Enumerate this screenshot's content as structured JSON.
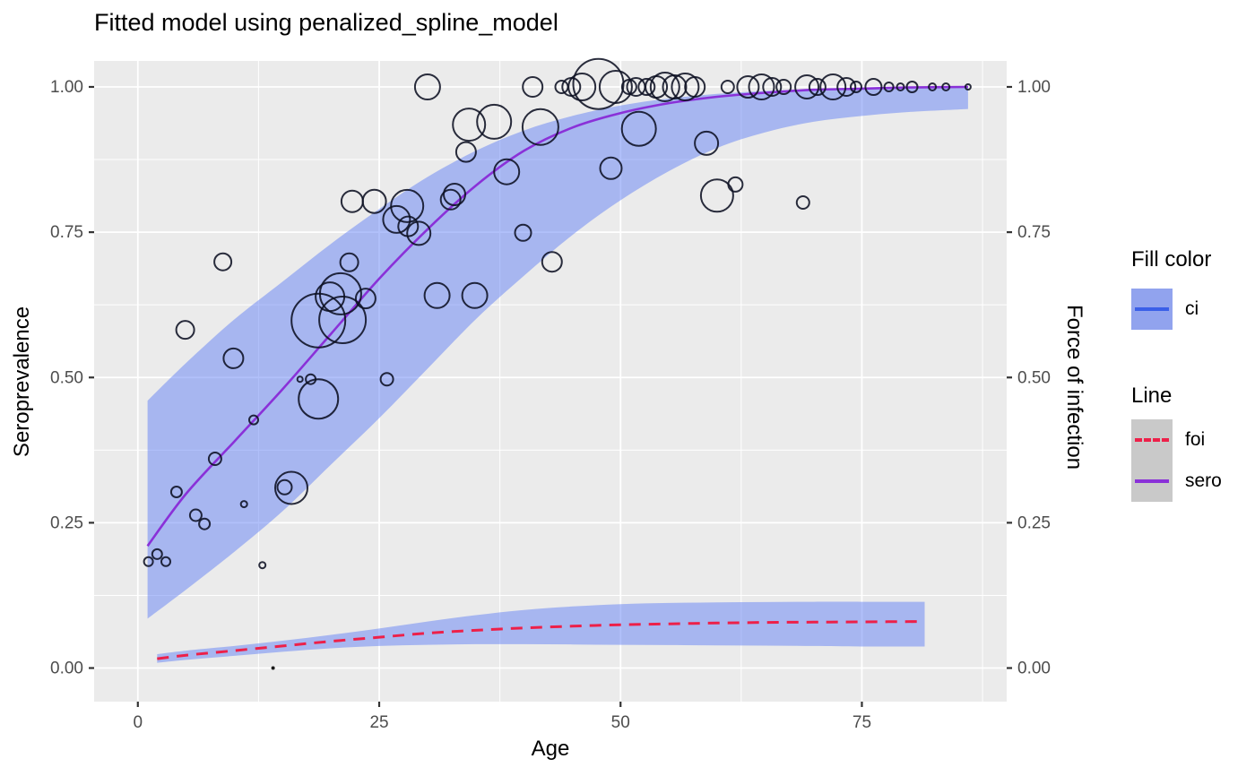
{
  "title": "Fitted model using penalized_spline_model",
  "axes": {
    "x": {
      "label": "Age",
      "tick_labels": [
        "0",
        "25",
        "50",
        "75"
      ],
      "tick_values": [
        0,
        25,
        50,
        75
      ],
      "minor_values": [
        12.5,
        37.5,
        62.5,
        87.5
      ]
    },
    "y_left": {
      "label": "Seroprevalence",
      "tick_labels": [
        "0.00",
        "0.25",
        "0.50",
        "0.75",
        "1.00"
      ],
      "tick_values": [
        0,
        0.25,
        0.5,
        0.75,
        1.0
      ],
      "minor_values": [
        0.125,
        0.375,
        0.625,
        0.875
      ]
    },
    "y_right": {
      "label": "Force of infection",
      "tick_labels": [
        "0.00",
        "0.25",
        "0.50",
        "0.75",
        "1.00"
      ],
      "tick_values": [
        0,
        0.25,
        0.5,
        0.75,
        1.0
      ]
    }
  },
  "legend": {
    "fill_group": {
      "title": "Fill color",
      "items": [
        {
          "label": "ci",
          "key_fill": "#91A3EE",
          "key_line": "#3A5FE8"
        }
      ]
    },
    "line_group": {
      "title": "Line",
      "key_bg": "#C9C9C9",
      "items": [
        {
          "label": "foi",
          "color": "#ED2049",
          "dashed": true
        },
        {
          "label": "sero",
          "color": "#8A31D8",
          "dashed": false
        }
      ]
    }
  },
  "colors": {
    "panel_bg": "#EBEBEB",
    "grid": "#FFFFFF",
    "ribbon": "#6482F5",
    "ribbon_alpha": 0.5,
    "sero_line": "#8A31D8",
    "foi_line": "#ED2049",
    "bubble_stroke": "rgba(12,16,34,0.88)",
    "tick_mark": "#333333",
    "tick_label": "#4D4D4D"
  },
  "chart_data": {
    "type": "mixed: bubble scatter + fitted lines with CI ribbons",
    "x_domain": [
      -4.53,
      90.0
    ],
    "y_domain": [
      -0.0578,
      1.0447
    ],
    "grid": "major+minor",
    "legend_position": "right",
    "series": [
      {
        "name": "sero",
        "kind": "line+ribbon",
        "line": [
          [
            1,
            0.21
          ],
          [
            5,
            0.3
          ],
          [
            10,
            0.39
          ],
          [
            15,
            0.48
          ],
          [
            20,
            0.575
          ],
          [
            25,
            0.67
          ],
          [
            30,
            0.755
          ],
          [
            35,
            0.83
          ],
          [
            40,
            0.89
          ],
          [
            45,
            0.93
          ],
          [
            50,
            0.955
          ],
          [
            55,
            0.972
          ],
          [
            60,
            0.983
          ],
          [
            65,
            0.99
          ],
          [
            70,
            0.995
          ],
          [
            75,
            0.997
          ],
          [
            80,
            0.999
          ],
          [
            86,
            1.0
          ]
        ],
        "upper": [
          [
            1,
            0.46
          ],
          [
            5,
            0.525
          ],
          [
            10,
            0.6
          ],
          [
            15,
            0.665
          ],
          [
            20,
            0.73
          ],
          [
            25,
            0.79
          ],
          [
            30,
            0.845
          ],
          [
            35,
            0.89
          ],
          [
            40,
            0.925
          ],
          [
            45,
            0.95
          ],
          [
            50,
            0.968
          ],
          [
            55,
            0.98
          ],
          [
            60,
            0.988
          ],
          [
            65,
            0.993
          ],
          [
            70,
            0.996
          ],
          [
            75,
            0.998
          ],
          [
            80,
            0.999
          ],
          [
            86,
            1.0
          ]
        ],
        "lower": [
          [
            1,
            0.085
          ],
          [
            5,
            0.135
          ],
          [
            10,
            0.2
          ],
          [
            15,
            0.27
          ],
          [
            20,
            0.35
          ],
          [
            25,
            0.43
          ],
          [
            30,
            0.515
          ],
          [
            35,
            0.6
          ],
          [
            40,
            0.675
          ],
          [
            45,
            0.745
          ],
          [
            50,
            0.805
          ],
          [
            55,
            0.855
          ],
          [
            60,
            0.895
          ],
          [
            65,
            0.922
          ],
          [
            70,
            0.94
          ],
          [
            75,
            0.95
          ],
          [
            80,
            0.957
          ],
          [
            86,
            0.962
          ]
        ]
      },
      {
        "name": "foi",
        "kind": "dashed-line+ribbon",
        "line": [
          [
            2,
            0.016
          ],
          [
            5,
            0.022
          ],
          [
            10,
            0.03
          ],
          [
            15,
            0.038
          ],
          [
            20,
            0.046
          ],
          [
            25,
            0.053
          ],
          [
            30,
            0.06
          ],
          [
            35,
            0.065
          ],
          [
            40,
            0.069
          ],
          [
            45,
            0.072
          ],
          [
            50,
            0.0745
          ],
          [
            55,
            0.076
          ],
          [
            60,
            0.0775
          ],
          [
            65,
            0.0785
          ],
          [
            70,
            0.079
          ],
          [
            75,
            0.0795
          ],
          [
            81.5,
            0.08
          ]
        ],
        "upper": [
          [
            2,
            0.024
          ],
          [
            5,
            0.03
          ],
          [
            10,
            0.038
          ],
          [
            15,
            0.047
          ],
          [
            20,
            0.057
          ],
          [
            25,
            0.068
          ],
          [
            30,
            0.08
          ],
          [
            35,
            0.091
          ],
          [
            40,
            0.1
          ],
          [
            45,
            0.106
          ],
          [
            50,
            0.11
          ],
          [
            55,
            0.112
          ],
          [
            60,
            0.113
          ],
          [
            65,
            0.1135
          ],
          [
            70,
            0.114
          ],
          [
            75,
            0.114
          ],
          [
            81.5,
            0.114
          ]
        ],
        "lower": [
          [
            2,
            0.009
          ],
          [
            5,
            0.014
          ],
          [
            10,
            0.021
          ],
          [
            15,
            0.028
          ],
          [
            20,
            0.034
          ],
          [
            25,
            0.038
          ],
          [
            30,
            0.04
          ],
          [
            35,
            0.041
          ],
          [
            40,
            0.041
          ],
          [
            45,
            0.0405
          ],
          [
            50,
            0.04
          ],
          [
            55,
            0.0395
          ],
          [
            60,
            0.039
          ],
          [
            65,
            0.0385
          ],
          [
            70,
            0.038
          ],
          [
            75,
            0.037
          ],
          [
            81.5,
            0.037
          ]
        ]
      }
    ],
    "bubbles_note": "observed seroprevalence by age; r = bubble radius px (size ~ sample n)",
    "bubbles": [
      [
        1.1,
        0.183,
        5
      ],
      [
        2.0,
        0.196,
        5.5
      ],
      [
        2.9,
        0.183,
        5
      ],
      [
        4.0,
        0.303,
        6
      ],
      [
        4.9,
        0.582,
        10
      ],
      [
        6.0,
        0.263,
        6.5
      ],
      [
        6.9,
        0.248,
        6
      ],
      [
        8.0,
        0.36,
        7
      ],
      [
        8.8,
        0.699,
        9.5
      ],
      [
        9.9,
        0.533,
        11
      ],
      [
        11.0,
        0.282,
        3.5
      ],
      [
        12.0,
        0.427,
        5
      ],
      [
        12.9,
        0.177,
        3.5
      ],
      [
        14.0,
        0.0,
        2
      ],
      [
        15.2,
        0.311,
        8
      ],
      [
        15.9,
        0.31,
        18
      ],
      [
        16.8,
        0.497,
        3
      ],
      [
        17.9,
        0.497,
        5.5
      ],
      [
        18.7,
        0.463,
        22
      ],
      [
        18.7,
        0.598,
        30
      ],
      [
        19.9,
        0.639,
        16
      ],
      [
        21.0,
        0.644,
        23
      ],
      [
        21.2,
        0.599,
        26
      ],
      [
        21.9,
        0.698,
        10
      ],
      [
        23.6,
        0.636,
        11
      ],
      [
        25.8,
        0.497,
        7
      ],
      [
        22.2,
        0.803,
        12
      ],
      [
        24.5,
        0.803,
        13
      ],
      [
        26.8,
        0.772,
        15
      ],
      [
        27.9,
        0.795,
        18
      ],
      [
        28.0,
        0.76,
        11
      ],
      [
        29.1,
        0.748,
        13
      ],
      [
        30.0,
        1.0,
        14
      ],
      [
        31.0,
        0.641,
        14
      ],
      [
        34.9,
        0.641,
        14
      ],
      [
        32.4,
        0.806,
        11
      ],
      [
        32.8,
        0.815,
        12
      ],
      [
        34.0,
        0.888,
        11
      ],
      [
        34.3,
        0.935,
        18
      ],
      [
        36.9,
        0.94,
        19
      ],
      [
        38.2,
        0.854,
        14
      ],
      [
        39.9,
        0.749,
        9
      ],
      [
        40.9,
        1.0,
        11
      ],
      [
        41.7,
        0.931,
        20
      ],
      [
        42.9,
        0.699,
        11
      ],
      [
        43.9,
        1.0,
        7
      ],
      [
        44.9,
        1.0,
        10
      ],
      [
        46.0,
        1.0,
        15
      ],
      [
        47.7,
        1.005,
        28
      ],
      [
        49.0,
        0.86,
        12
      ],
      [
        49.5,
        1.0,
        18
      ],
      [
        50.9,
        1.0,
        8
      ],
      [
        51.6,
        1.0,
        10
      ],
      [
        51.9,
        0.928,
        19
      ],
      [
        52.7,
        1.0,
        9
      ],
      [
        53.7,
        1.0,
        12
      ],
      [
        54.6,
        1.0,
        16
      ],
      [
        55.6,
        1.0,
        13
      ],
      [
        56.7,
        1.0,
        15
      ],
      [
        57.7,
        1.0,
        11
      ],
      [
        58.9,
        0.903,
        13
      ],
      [
        60.0,
        0.813,
        18
      ],
      [
        61.1,
        1.0,
        7
      ],
      [
        61.9,
        0.832,
        8
      ],
      [
        63.2,
        1.0,
        12
      ],
      [
        64.6,
        1.0,
        14
      ],
      [
        65.7,
        1.0,
        10
      ],
      [
        66.9,
        1.0,
        8
      ],
      [
        68.9,
        0.801,
        7
      ],
      [
        69.3,
        1.0,
        13
      ],
      [
        70.4,
        1.0,
        9
      ],
      [
        72.0,
        1.0,
        14
      ],
      [
        73.4,
        1.0,
        10
      ],
      [
        74.4,
        1.0,
        6
      ],
      [
        76.2,
        1.0,
        9
      ],
      [
        77.8,
        1.0,
        5
      ],
      [
        79.0,
        1.0,
        4
      ],
      [
        80.2,
        1.0,
        6
      ],
      [
        82.3,
        1.0,
        4
      ],
      [
        83.7,
        1.0,
        4
      ],
      [
        86.0,
        1.0,
        3
      ]
    ]
  }
}
